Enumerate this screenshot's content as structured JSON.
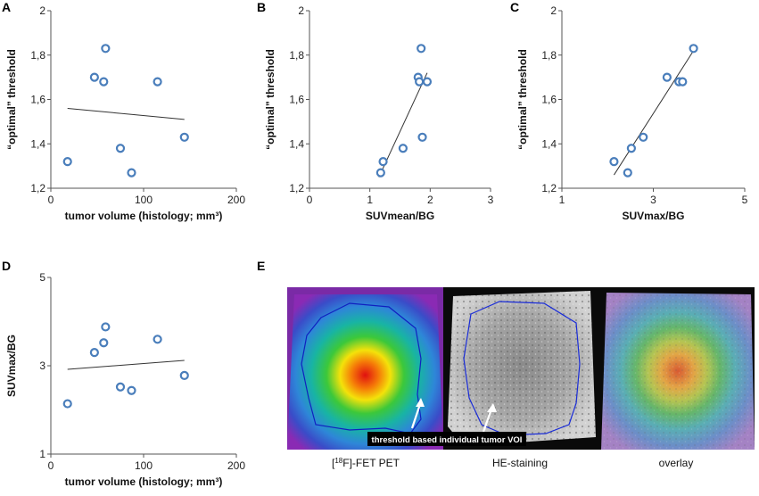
{
  "panel_E": {
    "label": "E",
    "captions": [
      "[18F]-FET PET",
      "HE-staining",
      "overlay"
    ],
    "annotation": "threshold based individual tumor VOI",
    "caption_sup": "18",
    "caption_main": "F]-FET PET"
  },
  "chart_data": [
    {
      "type": "scatter",
      "panel": "A",
      "xlabel": "tumor volume (histology; mm³)",
      "ylabel": "“optimal” threshold",
      "xlim": [
        0,
        200
      ],
      "ylim": [
        1.2,
        2.0
      ],
      "xticks": [
        "0",
        "100",
        "200"
      ],
      "yticks": [
        "1,2",
        "1,4",
        "1,6",
        "1,8",
        "2"
      ],
      "x": [
        18,
        47,
        57,
        59,
        75,
        87,
        115,
        144
      ],
      "y": [
        1.32,
        1.7,
        1.68,
        1.83,
        1.38,
        1.27,
        1.68,
        1.43
      ],
      "trendline": [
        [
          18,
          1.56
        ],
        [
          144,
          1.51
        ]
      ],
      "marker_color": "#4a7ebb"
    },
    {
      "type": "scatter",
      "panel": "B",
      "xlabel": "SUVmean/BG",
      "ylabel": "“optimal” threshold",
      "xlim": [
        0,
        3
      ],
      "ylim": [
        1.2,
        2.0
      ],
      "xticks": [
        "0",
        "1",
        "2",
        "3"
      ],
      "yticks": [
        "1,2",
        "1,4",
        "1,6",
        "1,8",
        "2"
      ],
      "x": [
        1.18,
        1.22,
        1.55,
        1.8,
        1.82,
        1.85,
        1.87,
        1.95
      ],
      "y": [
        1.27,
        1.32,
        1.38,
        1.7,
        1.68,
        1.83,
        1.43,
        1.68
      ],
      "trendline": [
        [
          1.15,
          1.25
        ],
        [
          1.95,
          1.72
        ]
      ],
      "marker_color": "#4a7ebb"
    },
    {
      "type": "scatter",
      "panel": "C",
      "xlabel": "SUVmax/BG",
      "ylabel": "“optimal” threshold",
      "xlim": [
        1,
        5
      ],
      "ylim": [
        1.2,
        2.0
      ],
      "xticks": [
        "1",
        "3",
        "5"
      ],
      "yticks": [
        "1,2",
        "1,4",
        "1,6",
        "1,8",
        "2"
      ],
      "x": [
        2.14,
        2.44,
        2.52,
        2.78,
        3.3,
        3.56,
        3.64,
        3.88
      ],
      "y": [
        1.32,
        1.27,
        1.38,
        1.43,
        1.7,
        1.68,
        1.68,
        1.83
      ],
      "trendline": [
        [
          2.14,
          1.26
        ],
        [
          3.88,
          1.82
        ]
      ],
      "marker_color": "#4a7ebb"
    },
    {
      "type": "scatter",
      "panel": "D",
      "xlabel": "tumor volume (histology; mm³)",
      "ylabel": "SUVmax/BG",
      "xlim": [
        0,
        200
      ],
      "ylim": [
        1,
        5
      ],
      "xticks": [
        "0",
        "100",
        "200"
      ],
      "yticks": [
        "1",
        "3",
        "5"
      ],
      "x": [
        18,
        47,
        57,
        59,
        75,
        87,
        115,
        144
      ],
      "y": [
        2.14,
        3.3,
        3.52,
        3.88,
        2.52,
        2.44,
        3.6,
        2.78
      ],
      "trendline": [
        [
          18,
          2.92
        ],
        [
          144,
          3.12
        ]
      ],
      "marker_color": "#4a7ebb"
    }
  ]
}
